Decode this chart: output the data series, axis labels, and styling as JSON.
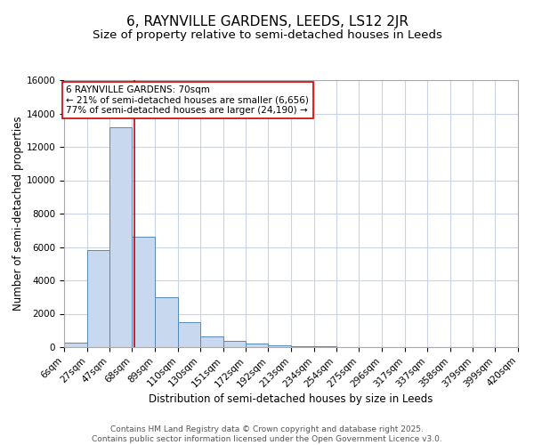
{
  "title": "6, RAYNVILLE GARDENS, LEEDS, LS12 2JR",
  "subtitle": "Size of property relative to semi-detached houses in Leeds",
  "xlabel": "Distribution of semi-detached houses by size in Leeds",
  "ylabel": "Number of semi-detached properties",
  "footer_line1": "Contains HM Land Registry data © Crown copyright and database right 2025.",
  "footer_line2": "Contains public sector information licensed under the Open Government Licence v3.0.",
  "bin_edges": [
    6,
    27,
    47,
    68,
    89,
    110,
    130,
    151,
    172,
    192,
    213,
    234,
    254,
    275,
    296,
    317,
    337,
    358,
    379,
    399,
    420
  ],
  "bar_heights": [
    250,
    5800,
    13200,
    6600,
    3000,
    1500,
    650,
    350,
    200,
    100,
    50,
    30,
    10,
    5,
    2,
    1,
    0,
    0,
    0,
    0
  ],
  "bar_color": "#c8d8ee",
  "bar_edge_color": "#5588bb",
  "property_size": 70,
  "red_line_color": "#cc0000",
  "annotation_text": "6 RAYNVILLE GARDENS: 70sqm\n← 21% of semi-detached houses are smaller (6,656)\n77% of semi-detached houses are larger (24,190) →",
  "annotation_box_color": "#cc0000",
  "annotation_text_color": "#000000",
  "ylim": [
    0,
    16000
  ],
  "yticks": [
    0,
    2000,
    4000,
    6000,
    8000,
    10000,
    12000,
    14000,
    16000
  ],
  "background_color": "#ffffff",
  "grid_color": "#c8d4e4",
  "title_fontsize": 11,
  "subtitle_fontsize": 9.5,
  "axis_label_fontsize": 8.5,
  "tick_fontsize": 7.5,
  "annotation_fontsize": 7.5,
  "footer_fontsize": 6.5
}
